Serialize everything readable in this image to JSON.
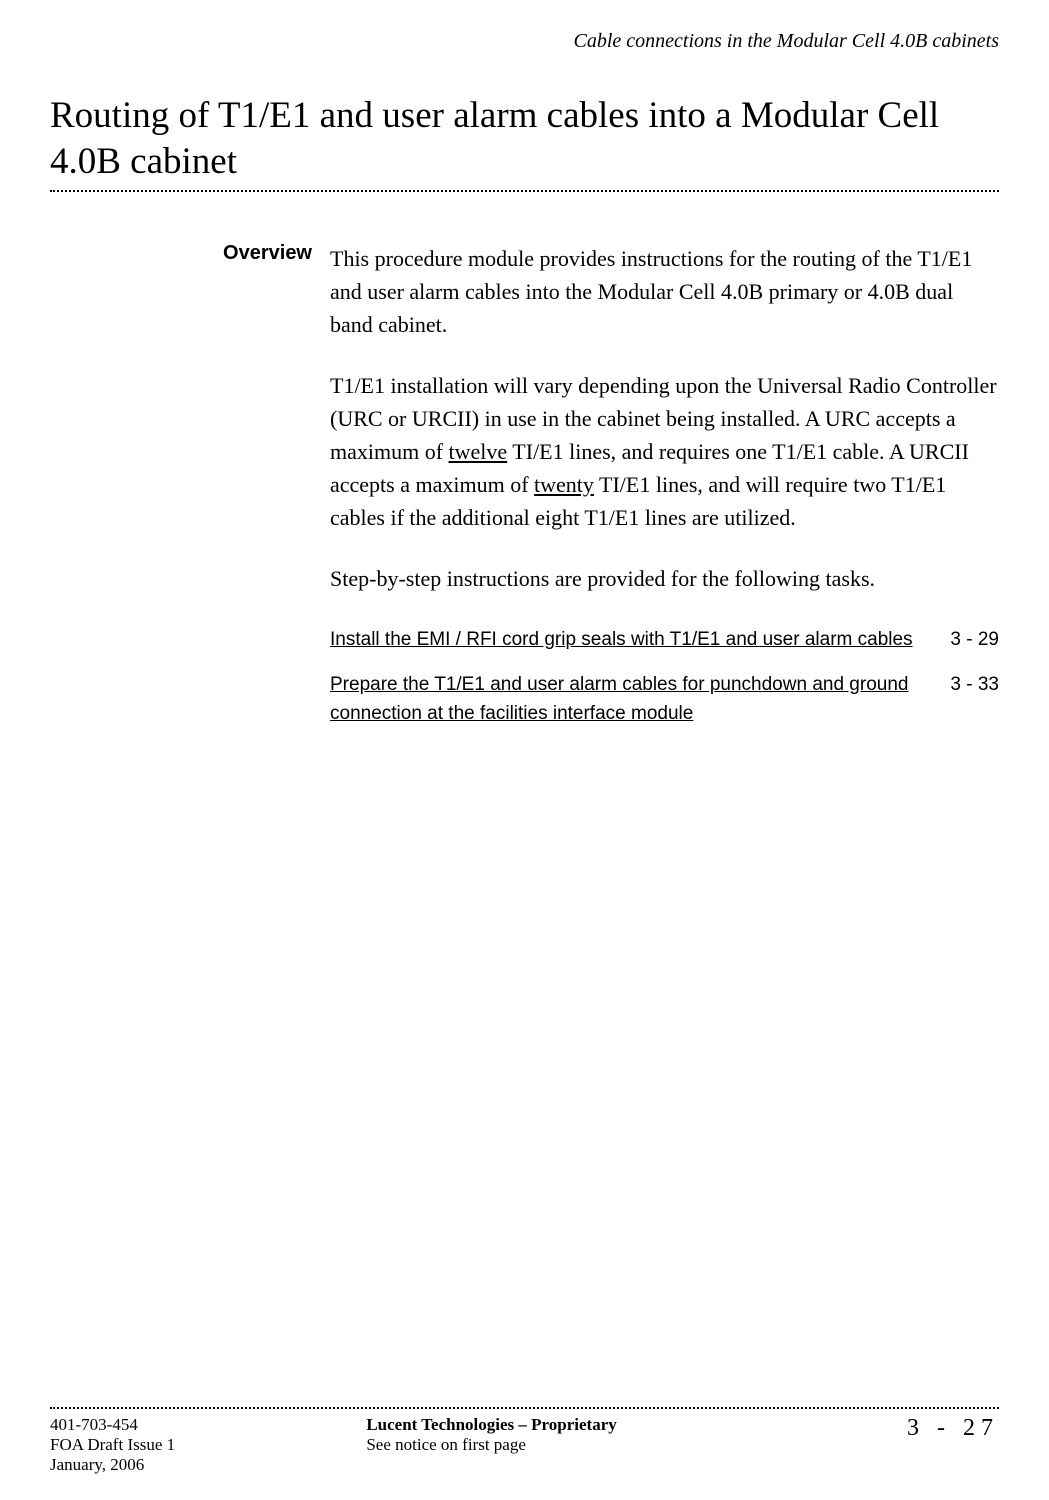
{
  "header": {
    "section_title": "Cable connections in the Modular Cell 4.0B cabinets"
  },
  "title": "Routing of T1/E1 and user alarm cables into a Modular Cell 4.0B cabinet",
  "section_label": "Overview",
  "paragraphs": {
    "p1": "This procedure module provides instructions for the routing of the T1/E1 and user alarm cables into the Modular Cell 4.0B primary or 4.0B dual band cabinet.",
    "p2_a": "T1/E1 installation will vary depending upon the Universal Radio Controller (URC or URCII) in use in the cabinet being installed. A URC accepts a maximum of ",
    "p2_u1": "twelve",
    "p2_b": " TI/E1 lines, and requires one T1/E1 cable. A URCII accepts a maximum of ",
    "p2_u2": "twenty",
    "p2_c": " TI/E1 lines, and will require two T1/E1 cables if the additional eight T1/E1 lines are utilized.",
    "p3": "Step-by-step instructions are provided for the following tasks."
  },
  "toc": {
    "item1": {
      "text": "Install the EMI / RFI cord grip seals with T1/E1 and user alarm cables",
      "page": "3 - 29"
    },
    "item2": {
      "text": "Prepare the T1/E1 and user alarm cables for punchdown and ground connection at the facilities interface module",
      "page": "3 - 33"
    }
  },
  "footer": {
    "doc_number": "401-703-454",
    "issue": "FOA Draft Issue 1",
    "date": "January, 2006",
    "center_bold": "Lucent Technologies – Proprietary",
    "center_plain": "See notice on first page",
    "page_number": "3 - 27"
  }
}
